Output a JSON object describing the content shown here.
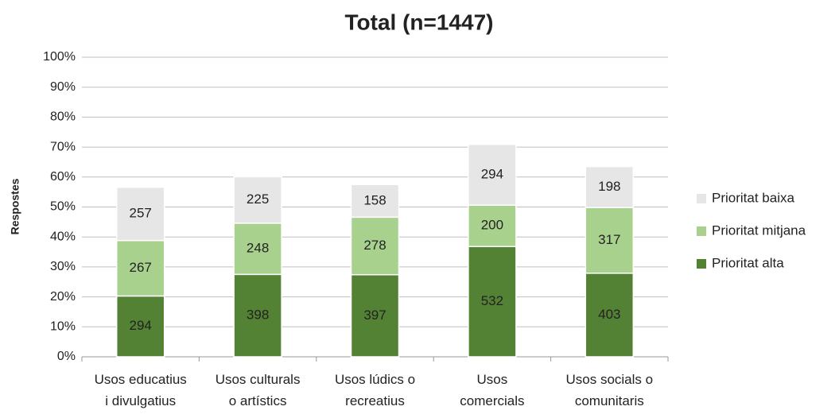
{
  "chart_data": {
    "type": "bar",
    "stacked": true,
    "title": "Total (n=1447)",
    "y_label": "Respostes",
    "categories": [
      "Usos educatius\ni divulgatius",
      "Usos culturals\no artístics",
      "Usos lúdics o\nrecreatius",
      "Usos\ncomercials",
      "Usos socials o\ncomunitaris"
    ],
    "series": [
      {
        "name": "Prioritat alta",
        "color": "#548235",
        "values": [
          20.3,
          27.5,
          27.4,
          36.8,
          27.9
        ],
        "value_labels": [
          "294",
          "398",
          "397",
          "532",
          "403"
        ]
      },
      {
        "name": "Prioritat mitjana",
        "color": "#a9d18e",
        "values": [
          18.5,
          17.1,
          19.2,
          13.8,
          21.9
        ],
        "value_labels": [
          "267",
          "248",
          "278",
          "200",
          "317"
        ]
      },
      {
        "name": "Prioritat baixa",
        "color": "#e7e6e6",
        "values": [
          17.8,
          15.5,
          10.9,
          20.3,
          13.7
        ],
        "value_labels": [
          "257",
          "225",
          "158",
          "294",
          "198"
        ]
      }
    ],
    "ylim": [
      0,
      100
    ],
    "yticks": [
      {
        "value": 0,
        "label": "0%"
      },
      {
        "value": 10,
        "label": "10%"
      },
      {
        "value": 20,
        "label": "20%"
      },
      {
        "value": 30,
        "label": "30%"
      },
      {
        "value": 40,
        "label": "40%"
      },
      {
        "value": 50,
        "label": "50%"
      },
      {
        "value": 60,
        "label": "60%"
      },
      {
        "value": 70,
        "label": "70%"
      },
      {
        "value": 80,
        "label": "80%"
      },
      {
        "value": 90,
        "label": "90%"
      },
      {
        "value": 100,
        "label": "100%"
      }
    ],
    "grid": true,
    "legend": "right"
  }
}
